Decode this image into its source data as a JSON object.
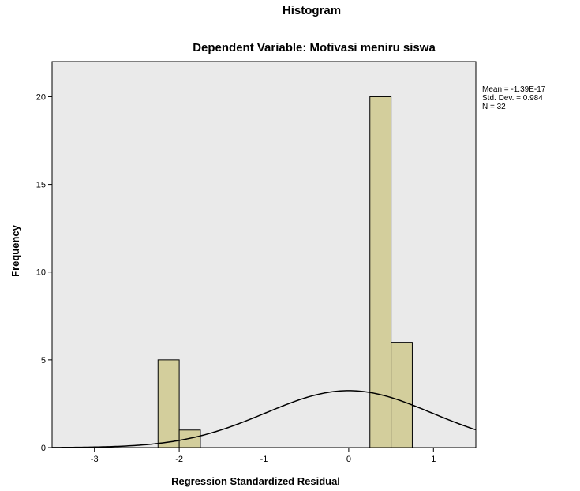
{
  "chart_data": {
    "type": "histogram",
    "title": "Histogram",
    "subtitle": "Dependent Variable: Motivasi meniru siswa",
    "xlabel": "Regression Standardized Residual",
    "ylabel": "Frequency",
    "xlim": [
      -3.5,
      1.5
    ],
    "ylim": [
      0,
      22
    ],
    "x_ticks": [
      -3,
      -2,
      -1,
      0,
      1
    ],
    "y_ticks": [
      0,
      5,
      10,
      15,
      20
    ],
    "bins": [
      {
        "x0": -2.25,
        "x1": -2.0,
        "count": 5
      },
      {
        "x0": -2.0,
        "x1": -1.75,
        "count": 1
      },
      {
        "x0": 0.25,
        "x1": 0.5,
        "count": 20
      },
      {
        "x0": 0.5,
        "x1": 0.75,
        "count": 6
      }
    ],
    "normal_curve": {
      "mean": 0,
      "sd": 0.984,
      "n": 32,
      "bin_width": 0.25
    },
    "stats": {
      "mean": "Mean = -1.39E-17",
      "sd": "Std. Dev. = 0.984",
      "n": "N = 32"
    },
    "colors": {
      "plot_background": "#EAEAEA",
      "bar_fill": "#D3CE9C",
      "bar_stroke": "#000000",
      "curve": "#000000"
    },
    "grid": false
  }
}
